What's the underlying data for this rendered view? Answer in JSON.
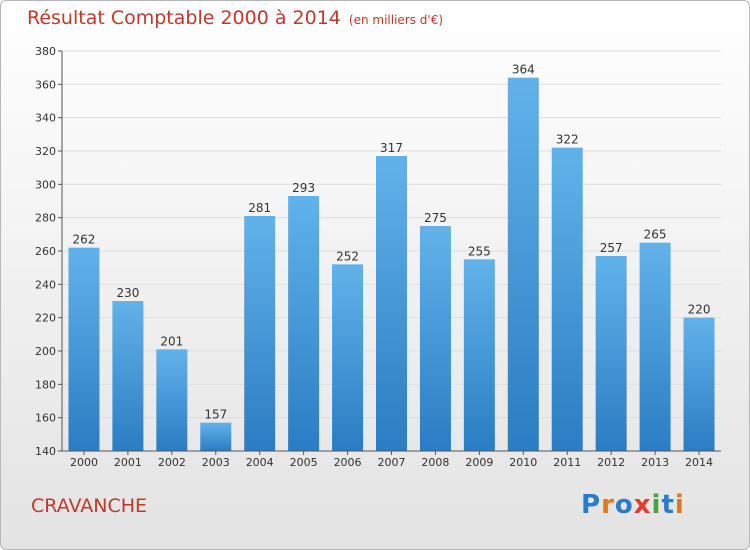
{
  "header": {
    "title": "Résultat Comptable 2000 à 2014",
    "subtitle": "(en milliers d'€)"
  },
  "place_name": "CRAVANCHE",
  "logo": {
    "text": "Proxiti",
    "letter_colors": [
      "#2a7bc8",
      "#e0781e",
      "#2a7bc8",
      "#e63a2a",
      "#4aa23a",
      "#2a7bc8",
      "#e0781e"
    ]
  },
  "colors": {
    "bar_top": "#62b2ea",
    "bar_bottom": "#2a7dc3",
    "title": "#c0392b",
    "grid": "#dedede",
    "axis": "#555555"
  },
  "chart_data": {
    "type": "bar",
    "title": "Résultat Comptable 2000 à 2014",
    "subtitle": "(en milliers d'€)",
    "categories": [
      "2000",
      "2001",
      "2002",
      "2003",
      "2004",
      "2005",
      "2006",
      "2007",
      "2008",
      "2009",
      "2010",
      "2011",
      "2012",
      "2013",
      "2014"
    ],
    "values": [
      262,
      230,
      201,
      157,
      281,
      293,
      252,
      317,
      275,
      255,
      364,
      322,
      257,
      265,
      220
    ],
    "ylim": [
      140,
      380
    ],
    "yticks": [
      140,
      160,
      180,
      200,
      220,
      240,
      260,
      280,
      300,
      320,
      340,
      360,
      380
    ],
    "grid": true,
    "data_labels": true
  }
}
